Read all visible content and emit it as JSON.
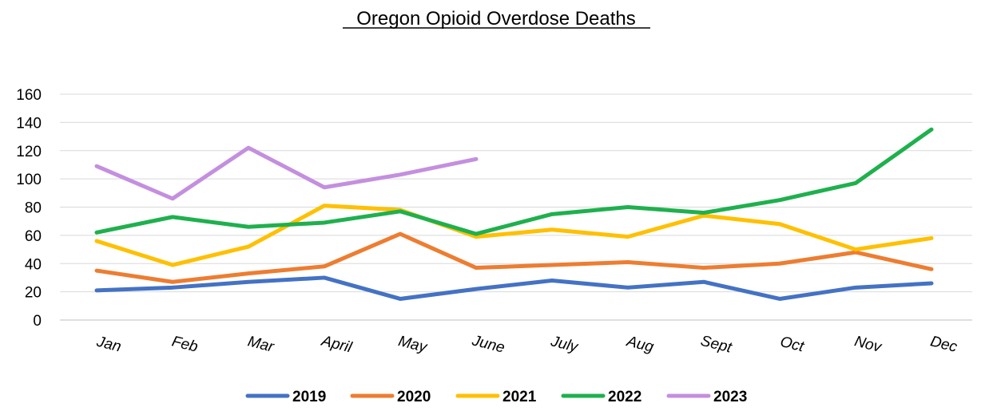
{
  "chart_data": {
    "type": "line",
    "title": "Oregon Opioid Overdose Deaths",
    "xlabel": "",
    "ylabel": "",
    "ylim": [
      0,
      160
    ],
    "yticks": [
      "0",
      "20",
      "40",
      "60",
      "80",
      "100",
      "120",
      "140",
      "160"
    ],
    "grid": true,
    "legend_position": "bottom",
    "categories": [
      "Jan",
      "Feb",
      "Mar",
      "April",
      "May",
      "June",
      "July",
      "Aug",
      "Sept",
      "Oct",
      "Nov",
      "Dec"
    ],
    "series": [
      {
        "name": "2019",
        "color": "#4472C4",
        "values": [
          21,
          23,
          27,
          30,
          15,
          22,
          28,
          23,
          27,
          15,
          23,
          26
        ]
      },
      {
        "name": "2020",
        "color": "#ED7D31",
        "values": [
          35,
          27,
          33,
          38,
          61,
          37,
          39,
          41,
          37,
          40,
          48,
          36
        ]
      },
      {
        "name": "2021",
        "color": "#FFC000",
        "values": [
          56,
          39,
          52,
          81,
          78,
          59,
          64,
          59,
          74,
          68,
          50,
          58
        ]
      },
      {
        "name": "2022",
        "color": "#1FB04E",
        "values": [
          62,
          73,
          66,
          69,
          77,
          61,
          75,
          80,
          76,
          85,
          97,
          135
        ]
      },
      {
        "name": "2023",
        "color": "#C48FDF",
        "values": [
          109,
          86,
          122,
          94,
          103,
          114,
          null,
          null,
          null,
          null,
          null,
          null
        ]
      }
    ]
  }
}
